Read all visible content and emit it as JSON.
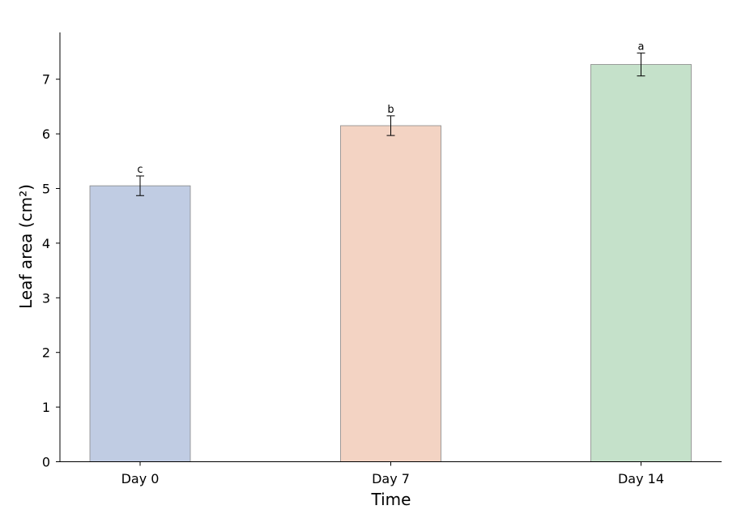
{
  "chart_data": {
    "type": "bar",
    "title": "",
    "xlabel": "Time",
    "ylabel": "Leaf area (cm²)",
    "categories": [
      "Day 0",
      "Day 7",
      "Day 14"
    ],
    "values": [
      5.05,
      6.15,
      7.27
    ],
    "errors": [
      0.18,
      0.18,
      0.21
    ],
    "significance_letters": [
      "c",
      "b",
      "a"
    ],
    "colors": [
      "#c0cce3",
      "#f3d3c3",
      "#c5e1ca"
    ],
    "bar_edge_color": "#888888",
    "ylim": [
      0,
      7.85
    ],
    "yticks": [
      "0",
      "1",
      "2",
      "3",
      "4",
      "5",
      "6",
      "7"
    ],
    "grid": false,
    "legend": "none"
  }
}
